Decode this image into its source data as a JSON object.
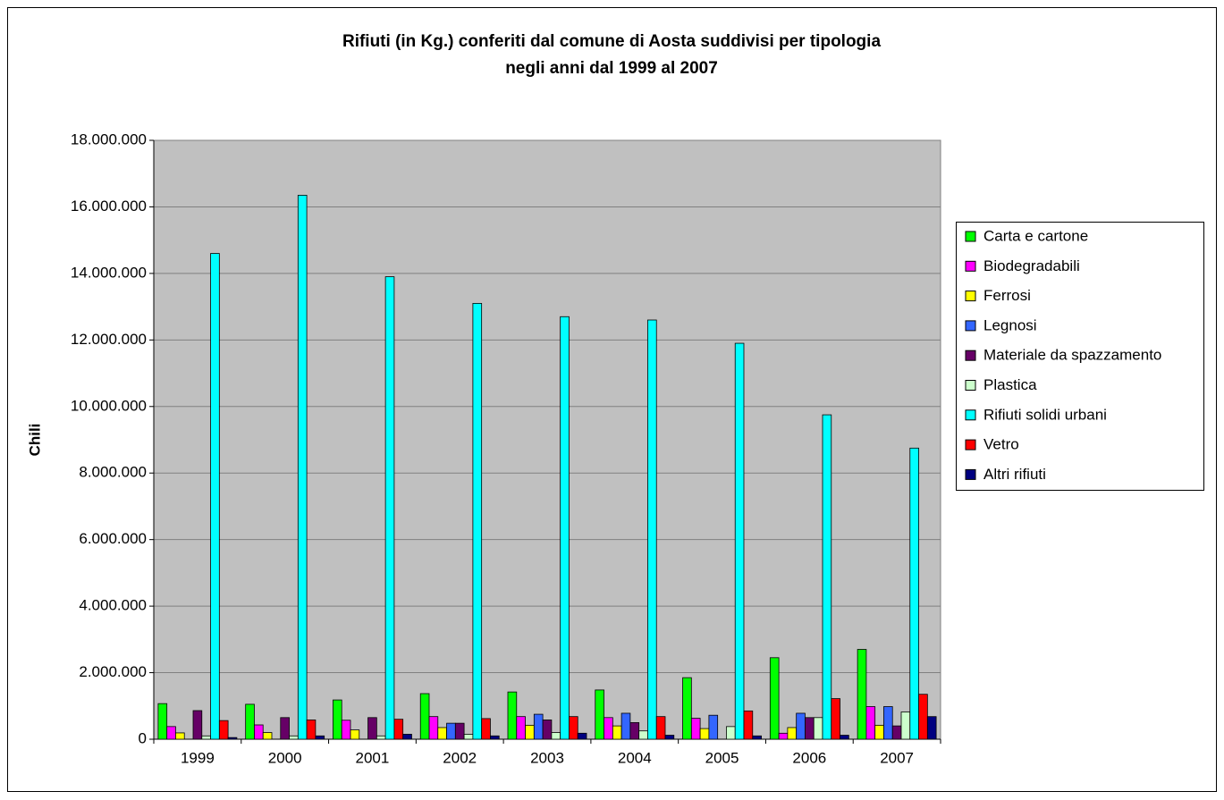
{
  "chart_data": {
    "type": "bar",
    "title": [
      "Rifiuti (in Kg.) conferiti dal comune di Aosta suddivisi per tipologia",
      "negli anni dal 1999 al 2007"
    ],
    "y_label": "Chili",
    "categories": [
      "1999",
      "2000",
      "2001",
      "2002",
      "2003",
      "2004",
      "2005",
      "2006",
      "2007"
    ],
    "series": [
      {
        "name": "Carta e cartone",
        "color": "#00ff00",
        "values": [
          1070000,
          1050000,
          1180000,
          1370000,
          1420000,
          1480000,
          1850000,
          2450000,
          2700000
        ]
      },
      {
        "name": "Biodegradabili",
        "color": "#ff00ff",
        "values": [
          380000,
          430000,
          570000,
          680000,
          680000,
          650000,
          630000,
          180000,
          980000
        ]
      },
      {
        "name": "Ferrosi",
        "color": "#ffff00",
        "values": [
          190000,
          200000,
          280000,
          350000,
          420000,
          400000,
          320000,
          350000,
          420000
        ]
      },
      {
        "name": "Legnosi",
        "color": "#3366ff",
        "values": [
          0,
          0,
          0,
          480000,
          750000,
          780000,
          720000,
          780000,
          980000
        ]
      },
      {
        "name": "Materiale da spazzamento",
        "color": "#660066",
        "values": [
          860000,
          650000,
          650000,
          480000,
          580000,
          500000,
          0,
          650000,
          400000
        ]
      },
      {
        "name": "Plastica",
        "color": "#ccffcc",
        "values": [
          100000,
          100000,
          100000,
          150000,
          200000,
          250000,
          380000,
          650000,
          820000
        ]
      },
      {
        "name": "Rifiuti solidi urbani",
        "color": "#00ffff",
        "values": [
          14600000,
          16350000,
          13900000,
          13100000,
          12700000,
          12600000,
          11900000,
          9750000,
          8750000
        ]
      },
      {
        "name": "Vetro",
        "color": "#ff0000",
        "values": [
          560000,
          580000,
          600000,
          620000,
          680000,
          680000,
          850000,
          1220000,
          1350000
        ]
      },
      {
        "name": "Altri rifiuti",
        "color": "#000080",
        "values": [
          50000,
          100000,
          150000,
          100000,
          180000,
          120000,
          100000,
          120000,
          680000
        ]
      }
    ],
    "ylim": [
      0,
      18000000
    ],
    "yticks": [
      0,
      {
        "value": 2000000,
        "label": "2.000.000"
      },
      {
        "value": 4000000,
        "label": "4.000.000"
      },
      {
        "value": 6000000,
        "label": "6.000.000"
      },
      {
        "value": 8000000,
        "label": "8.000.000"
      },
      {
        "value": 10000000,
        "label": "10.000.000"
      },
      {
        "value": 12000000,
        "label": "12.000.000"
      },
      {
        "value": 14000000,
        "label": "14.000.000"
      },
      {
        "value": 16000000,
        "label": "16.000.000"
      },
      {
        "value": 18000000,
        "label": "18.000.000"
      }
    ],
    "grid": true,
    "legend": "right"
  }
}
